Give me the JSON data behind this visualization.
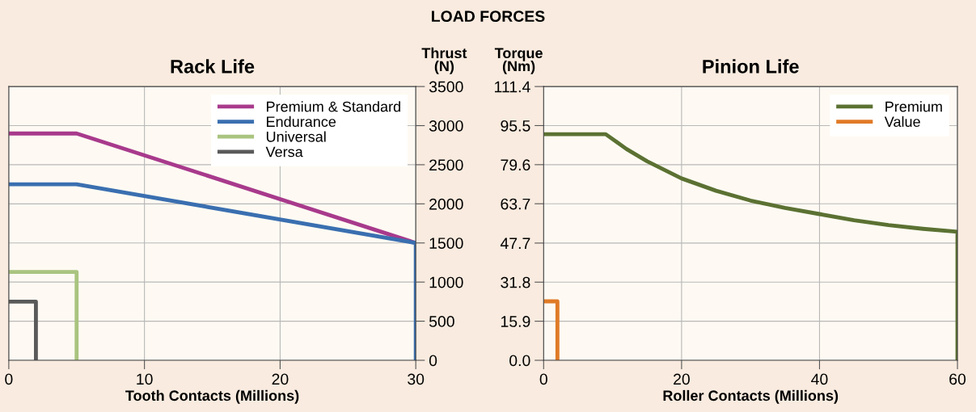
{
  "chart_data": [
    {
      "type": "line",
      "title": "Rack Life",
      "annotations": [
        "LOAD FORCES"
      ],
      "xlabel": "Tooth Contacts (Millions)",
      "ylabel": "Thrust\n(N)",
      "xlim": [
        0,
        30
      ],
      "xticks": [
        0,
        10,
        20,
        30
      ],
      "ylim": [
        0,
        3500
      ],
      "yticks": [
        0,
        500,
        1000,
        1500,
        2000,
        2500,
        3000,
        3500
      ],
      "grid": true,
      "legend": "top right",
      "series": [
        {
          "name": "Premium & Standard",
          "color": "#a83a8c",
          "x": [
            0,
            5,
            30
          ],
          "values": [
            2900,
            2900,
            1500
          ]
        },
        {
          "name": "Endurance",
          "color": "#3a6fb0",
          "x": [
            0,
            5,
            30,
            30
          ],
          "values": [
            2250,
            2250,
            1500,
            0
          ]
        },
        {
          "name": "Universal",
          "color": "#a9c47f",
          "x": [
            0,
            5,
            5
          ],
          "values": [
            1130,
            1130,
            0
          ]
        },
        {
          "name": "Versa",
          "color": "#5a5a5a",
          "x": [
            0,
            2,
            2
          ],
          "values": [
            750,
            750,
            0
          ]
        }
      ]
    },
    {
      "type": "line",
      "title": "Pinion Life",
      "xlabel": "Roller Contacts (Millions)",
      "ylabel": "Torque\n(Nm)",
      "xlim": [
        0,
        60
      ],
      "xticks": [
        0,
        20,
        40,
        60
      ],
      "ylim": [
        0,
        111.4
      ],
      "yticks": [
        {
          "value": 0,
          "label": "0.0"
        },
        15.9,
        31.8,
        47.7,
        63.7,
        79.6,
        95.5,
        111.4
      ],
      "grid": true,
      "legend": "top right",
      "series": [
        {
          "name": "Premium",
          "color": "#5b7132",
          "x": [
            0,
            9,
            12,
            15,
            20,
            25,
            30,
            35,
            40,
            45,
            50,
            55,
            60,
            60
          ],
          "values": [
            92,
            92,
            86,
            81,
            74,
            69,
            65,
            62,
            59.5,
            57,
            55,
            53.5,
            52.3,
            0
          ]
        },
        {
          "name": "Value",
          "color": "#e07a27",
          "x": [
            0,
            2,
            2
          ],
          "values": [
            24,
            24,
            0
          ]
        }
      ]
    }
  ]
}
